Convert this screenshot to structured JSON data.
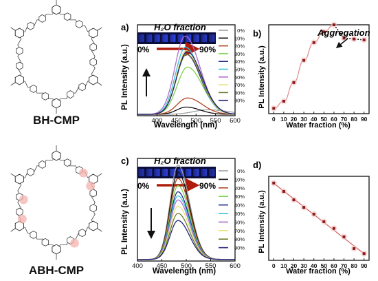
{
  "molecules": [
    {
      "name": "BH-CMP",
      "highlight": false
    },
    {
      "name": "ABH-CMP",
      "highlight": true
    }
  ],
  "chart_data": [
    {
      "panel": "a)",
      "type": "line",
      "xlabel": "Wavelength (nm)",
      "ylabel": "PL Intensity (a.u.)",
      "xlim": [
        350,
        600
      ],
      "xticks": [
        400,
        450,
        500,
        550,
        600
      ],
      "ylim": [
        0,
        100
      ],
      "inset_title": "H₂O fraction",
      "inset_range": [
        "0%",
        "90%"
      ],
      "arrow": "up",
      "series": [
        {
          "name": "0%",
          "color": "#9e9e9e",
          "peak": 530,
          "amplitude": 5,
          "width": 60
        },
        {
          "name": "10%",
          "color": "#111111",
          "peak": 475,
          "amplitude": 8,
          "width": 40
        },
        {
          "name": "20%",
          "color": "#b5441f",
          "peak": 478,
          "amplitude": 18,
          "width": 43
        },
        {
          "name": "30%",
          "color": "#7bd14a",
          "peak": 478,
          "amplitude": 52,
          "width": 44
        },
        {
          "name": "40%",
          "color": "#1c2a8c",
          "peak": 475,
          "amplitude": 66,
          "width": 42
        },
        {
          "name": "50%",
          "color": "#35c4d6",
          "peak": 473,
          "amplitude": 74,
          "width": 42
        },
        {
          "name": "60%",
          "color": "#b06ad1",
          "peak": 472,
          "amplitude": 86,
          "width": 43
        },
        {
          "name": "70%",
          "color": "#e6e27a",
          "peak": 475,
          "amplitude": 70,
          "width": 42
        },
        {
          "name": "80%",
          "color": "#6d7d2a",
          "peak": 476,
          "amplitude": 66,
          "width": 43
        },
        {
          "name": "90%",
          "color": "#23227a",
          "peak": 477,
          "amplitude": 69,
          "width": 43
        }
      ]
    },
    {
      "panel": "b)",
      "type": "scatter",
      "xlabel": "Water fraction (%)",
      "ylabel": "PL Intensity (a.u.)",
      "annotation": "Aggregation",
      "xlim": [
        -5,
        95
      ],
      "xticks": [
        0,
        10,
        20,
        30,
        40,
        50,
        60,
        70,
        80,
        90
      ],
      "ylim": [
        0,
        100
      ],
      "x": [
        0,
        10,
        20,
        30,
        40,
        50,
        60,
        70,
        80,
        90
      ],
      "y": [
        6,
        14,
        35,
        60,
        80,
        92,
        100,
        85,
        84,
        83
      ],
      "fit_segment": [
        0,
        60
      ],
      "dotted_segment": [
        60,
        90
      ]
    },
    {
      "panel": "c)",
      "type": "line",
      "xlabel": "Wavelength (nm)",
      "ylabel": "PL Intensity (a.u.)",
      "xlim": [
        400,
        600
      ],
      "xticks": [
        400,
        450,
        500,
        550,
        600
      ],
      "ylim": [
        0,
        100
      ],
      "inset_title": "H₂O fraction",
      "inset_range": [
        "0%",
        "90%"
      ],
      "arrow": "down",
      "series": [
        {
          "name": "0%",
          "color": "#9e9e9e",
          "peak": 483,
          "amplitude": 92,
          "width": 27
        },
        {
          "name": "10%",
          "color": "#111111",
          "peak": 483,
          "amplitude": 85,
          "width": 27
        },
        {
          "name": "20%",
          "color": "#b5441f",
          "peak": 483,
          "amplitude": 79,
          "width": 27
        },
        {
          "name": "30%",
          "color": "#7bd14a",
          "peak": 483,
          "amplitude": 72,
          "width": 27
        },
        {
          "name": "40%",
          "color": "#1c2a8c",
          "peak": 483,
          "amplitude": 66,
          "width": 27
        },
        {
          "name": "50%",
          "color": "#35c4d6",
          "peak": 483,
          "amplitude": 62,
          "width": 27
        },
        {
          "name": "60%",
          "color": "#b06ad1",
          "peak": 483,
          "amplitude": 58,
          "width": 27
        },
        {
          "name": "70%",
          "color": "#e6e27a",
          "peak": 483,
          "amplitude": 52,
          "width": 27
        },
        {
          "name": "80%",
          "color": "#6d7d2a",
          "peak": 483,
          "amplitude": 45,
          "width": 27
        },
        {
          "name": "90%",
          "color": "#23227a",
          "peak": 483,
          "amplitude": 38,
          "width": 27
        }
      ]
    },
    {
      "panel": "d)",
      "type": "scatter",
      "xlabel": "Water fraction (%)",
      "ylabel": "PL Intensity (a.u.)",
      "xlim": [
        -5,
        95
      ],
      "xticks": [
        0,
        10,
        20,
        30,
        40,
        50,
        60,
        70,
        80,
        90
      ],
      "ylim": [
        0,
        100
      ],
      "x": [
        0,
        10,
        20,
        30,
        40,
        50,
        60,
        70,
        80,
        90
      ],
      "y": [
        92,
        82,
        72,
        63,
        55,
        46,
        38,
        28,
        14,
        8
      ],
      "fit": "linear"
    }
  ]
}
